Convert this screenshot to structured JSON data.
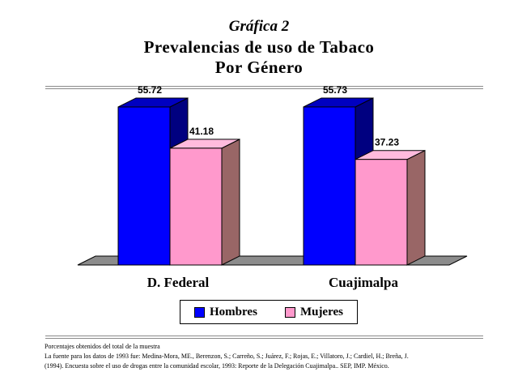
{
  "header": {
    "supertitle": "Gráfica 2",
    "title_line1": "Prevalencias de uso de Tabaco",
    "title_line2": "Por Género"
  },
  "chart_data": {
    "type": "bar",
    "categories": [
      "D. Federal",
      "Cuajimalpa"
    ],
    "series": [
      {
        "name": "Hombres",
        "values": [
          55.72,
          55.73
        ],
        "color": "#0000ff"
      },
      {
        "name": "Mujeres",
        "values": [
          41.18,
          37.23
        ],
        "color": "#ff99cc"
      }
    ],
    "value_labels": [
      [
        "55.72",
        "41.18"
      ],
      [
        "55.73",
        "37.23"
      ]
    ],
    "ylim": [
      0,
      60
    ],
    "grid": false,
    "three_d": true,
    "legend_position": "bottom"
  },
  "legend": {
    "hombres_label": "Hombres",
    "mujeres_label": "Mujeres"
  },
  "notes": {
    "line1": "Porcentajes obtenidos del total de la muestra",
    "line2": "La fuente para los datos de 1993 fue: Medina-Mora, ME., Berenzon, S.; Carreño, S.; Juárez, F.; Rojas, E.; Villatoro, J.; Cardiel, H.; Breña, J.",
    "line3": "(1994). Encuesta sobre el uso de drogas entre la comunidad escolar, 1993: Reporte de la Delegación Cuajimalpa.. SEP, IMP. México."
  }
}
